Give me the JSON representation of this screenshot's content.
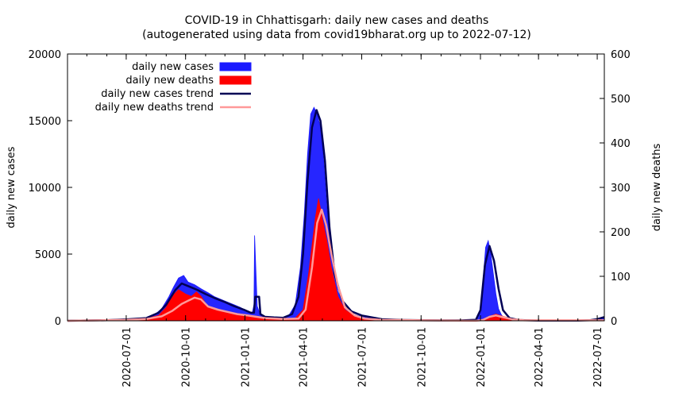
{
  "chart_data": {
    "type": "area",
    "title_line1": "COVID-19 in Chhattisgarh: daily new cases and deaths",
    "title_line2": "(autogenerated using data from covid19bharat.org up to 2022-07-12)",
    "ylabel_left": "daily new cases",
    "ylabel_right": "daily new deaths",
    "y_left_range": [
      0,
      20000
    ],
    "y_left_ticks": [
      "0",
      "5000",
      "10000",
      "15000",
      "20000"
    ],
    "y_left_tick_values": [
      0,
      5000,
      10000,
      15000,
      20000
    ],
    "y_right_range": [
      0,
      600
    ],
    "y_right_ticks": [
      "0",
      "100",
      "200",
      "300",
      "400",
      "500",
      "600"
    ],
    "y_right_tick_values": [
      0,
      100,
      200,
      300,
      400,
      500,
      600
    ],
    "x_range": [
      "2020-04-01",
      "2022-07-12"
    ],
    "x_ticks": [
      "2020-07-01",
      "2020-10-01",
      "2021-01-01",
      "2021-04-01",
      "2021-07-01",
      "2021-10-01",
      "2022-01-01",
      "2022-04-01",
      "2022-07-01"
    ],
    "legend": [
      "daily new cases",
      "daily new deaths",
      "daily new cases trend",
      "daily new deaths trend"
    ],
    "colors": {
      "cases": "#1a1aff",
      "deaths": "#ff0000",
      "cases_trend": "#000055",
      "deaths_trend": "#ff9999"
    },
    "series": [
      {
        "name": "daily new cases",
        "dates": [
          "2020-04-01",
          "2020-05-15",
          "2020-06-15",
          "2020-07-01",
          "2020-07-20",
          "2020-08-01",
          "2020-08-15",
          "2020-08-25",
          "2020-09-05",
          "2020-09-12",
          "2020-09-20",
          "2020-09-28",
          "2020-10-05",
          "2020-10-15",
          "2020-10-25",
          "2020-11-05",
          "2020-11-15",
          "2020-11-25",
          "2020-12-05",
          "2020-12-15",
          "2020-12-25",
          "2021-01-05",
          "2021-01-12",
          "2021-01-15",
          "2021-01-16",
          "2021-01-20",
          "2021-01-25",
          "2021-02-01",
          "2021-02-15",
          "2021-03-01",
          "2021-03-10",
          "2021-03-20",
          "2021-03-28",
          "2021-04-03",
          "2021-04-08",
          "2021-04-13",
          "2021-04-18",
          "2021-04-23",
          "2021-04-28",
          "2021-05-03",
          "2021-05-08",
          "2021-05-15",
          "2021-05-25",
          "2021-06-05",
          "2021-06-20",
          "2021-07-05",
          "2021-08-01",
          "2021-09-01",
          "2021-10-01",
          "2021-11-01",
          "2021-12-01",
          "2021-12-25",
          "2022-01-01",
          "2022-01-05",
          "2022-01-09",
          "2022-01-13",
          "2022-01-17",
          "2022-01-21",
          "2022-01-25",
          "2022-01-29",
          "2022-02-03",
          "2022-02-10",
          "2022-02-20",
          "2022-03-05",
          "2022-04-01",
          "2022-05-01",
          "2022-06-01",
          "2022-06-20",
          "2022-07-01",
          "2022-07-12"
        ],
        "values": [
          0,
          20,
          80,
          120,
          150,
          250,
          500,
          900,
          1800,
          2500,
          3200,
          3400,
          2900,
          2700,
          2400,
          2100,
          1800,
          1600,
          1400,
          1200,
          1000,
          700,
          500,
          1200,
          6400,
          1100,
          400,
          250,
          200,
          250,
          400,
          1200,
          4000,
          8000,
          12500,
          15500,
          16000,
          15500,
          14500,
          12000,
          8500,
          5000,
          2200,
          1000,
          450,
          250,
          100,
          60,
          40,
          30,
          30,
          100,
          600,
          3000,
          5500,
          6000,
          5000,
          3500,
          2000,
          900,
          400,
          150,
          80,
          40,
          20,
          15,
          20,
          40,
          100,
          250
        ]
      },
      {
        "name": "daily new deaths",
        "dates": [
          "2020-04-01",
          "2020-06-15",
          "2020-07-15",
          "2020-08-01",
          "2020-08-20",
          "2020-09-01",
          "2020-09-10",
          "2020-09-20",
          "2020-10-01",
          "2020-10-10",
          "2020-10-18",
          "2020-10-25",
          "2020-11-05",
          "2020-11-20",
          "2020-12-05",
          "2020-12-20",
          "2021-01-05",
          "2021-01-20",
          "2021-02-10",
          "2021-03-01",
          "2021-03-20",
          "2021-04-01",
          "2021-04-10",
          "2021-04-20",
          "2021-04-25",
          "2021-05-01",
          "2021-05-08",
          "2021-05-15",
          "2021-05-25",
          "2021-06-05",
          "2021-06-20",
          "2021-07-10",
          "2021-08-01",
          "2021-10-01",
          "2021-12-20",
          "2022-01-05",
          "2022-01-15",
          "2022-01-25",
          "2022-02-05",
          "2022-02-20",
          "2022-03-10",
          "2022-07-12"
        ],
        "values": [
          0,
          1,
          3,
          5,
          12,
          30,
          55,
          70,
          60,
          55,
          65,
          55,
          30,
          25,
          20,
          15,
          12,
          8,
          5,
          4,
          6,
          25,
          110,
          230,
          275,
          230,
          180,
          120,
          55,
          25,
          10,
          4,
          2,
          1,
          0,
          2,
          10,
          15,
          10,
          4,
          1,
          1
        ]
      },
      {
        "name": "daily new cases trend",
        "dates": [
          "2020-04-01",
          "2020-06-01",
          "2020-07-01",
          "2020-08-01",
          "2020-08-20",
          "2020-09-01",
          "2020-09-15",
          "2020-09-25",
          "2020-10-05",
          "2020-10-20",
          "2020-11-01",
          "2020-11-15",
          "2020-12-01",
          "2020-12-15",
          "2021-01-01",
          "2021-01-10",
          "2021-01-15",
          "2021-01-17",
          "2021-01-23",
          "2021-01-25",
          "2021-02-01",
          "2021-02-15",
          "2021-03-01",
          "2021-03-15",
          "2021-03-25",
          "2021-04-01",
          "2021-04-08",
          "2021-04-15",
          "2021-04-22",
          "2021-04-28",
          "2021-05-05",
          "2021-05-12",
          "2021-05-20",
          "2021-06-01",
          "2021-06-15",
          "2021-07-01",
          "2021-08-01",
          "2021-09-01",
          "2021-10-01",
          "2021-11-01",
          "2021-12-01",
          "2021-12-25",
          "2022-01-01",
          "2022-01-08",
          "2022-01-15",
          "2022-01-22",
          "2022-01-29",
          "2022-02-05",
          "2022-02-15",
          "2022-03-01",
          "2022-04-01",
          "2022-05-01",
          "2022-06-01",
          "2022-06-20",
          "2022-07-01",
          "2022-07-12"
        ],
        "values": [
          0,
          50,
          100,
          200,
          600,
          1200,
          2300,
          2800,
          2600,
          2300,
          2000,
          1700,
          1400,
          1100,
          800,
          600,
          600,
          1800,
          1800,
          500,
          300,
          250,
          220,
          500,
          1800,
          5000,
          10500,
          14500,
          15800,
          15000,
          12000,
          7000,
          3500,
          1500,
          700,
          400,
          120,
          60,
          40,
          30,
          30,
          80,
          800,
          4200,
          5600,
          4500,
          2400,
          800,
          200,
          60,
          20,
          15,
          20,
          50,
          120,
          280
        ]
      },
      {
        "name": "daily new deaths trend",
        "dates": [
          "2020-04-01",
          "2020-07-01",
          "2020-08-01",
          "2020-08-25",
          "2020-09-10",
          "2020-09-25",
          "2020-10-05",
          "2020-10-15",
          "2020-10-25",
          "2020-11-05",
          "2020-11-20",
          "2020-12-05",
          "2020-12-20",
          "2021-01-05",
          "2021-02-01",
          "2021-03-01",
          "2021-03-25",
          "2021-04-05",
          "2021-04-15",
          "2021-04-23",
          "2021-04-30",
          "2021-05-07",
          "2021-05-15",
          "2021-05-25",
          "2021-06-05",
          "2021-06-20",
          "2021-07-05",
          "2021-08-01",
          "2021-10-01",
          "2021-12-25",
          "2022-01-05",
          "2022-01-15",
          "2022-01-25",
          "2022-02-05",
          "2022-02-20",
          "2022-03-10",
          "2022-07-12"
        ],
        "values": [
          0,
          2,
          4,
          10,
          22,
          38,
          45,
          52,
          48,
          32,
          25,
          20,
          15,
          12,
          6,
          4,
          5,
          25,
          120,
          220,
          250,
          215,
          150,
          80,
          30,
          12,
          5,
          2,
          1,
          0,
          2,
          9,
          12,
          8,
          3,
          1,
          1
        ]
      }
    ]
  }
}
